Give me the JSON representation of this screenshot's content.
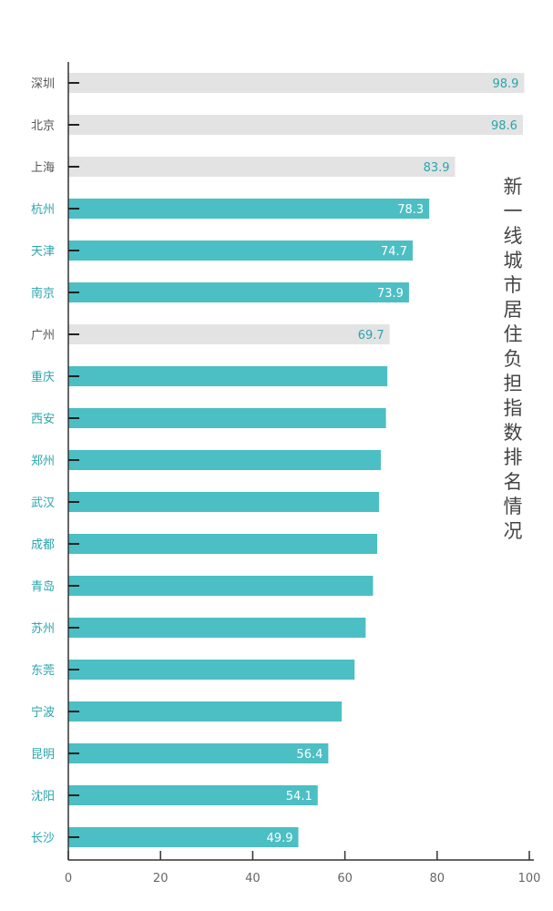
{
  "chart_data": {
    "type": "bar",
    "orientation": "horizontal",
    "title": "新一线城市居住负担指数排名情况",
    "categories": [
      "深圳",
      "北京",
      "上海",
      "杭州",
      "天津",
      "南京",
      "广州",
      "重庆",
      "西安",
      "郑州",
      "武汉",
      "成都",
      "青岛",
      "苏州",
      "东莞",
      "宁波",
      "昆明",
      "沈阳",
      "长沙"
    ],
    "values": [
      98.9,
      98.6,
      83.9,
      78.3,
      74.7,
      73.9,
      69.7,
      69.2,
      68.9,
      67.8,
      67.4,
      67.0,
      66.1,
      64.5,
      62.1,
      59.3,
      56.4,
      54.1,
      49.9
    ],
    "value_labels": [
      "98.9",
      "98.6",
      "83.9",
      "78.3",
      "74.7",
      "73.9",
      "69.7",
      "",
      "",
      "",
      "",
      "",
      "",
      "",
      "",
      "",
      "56.4",
      "54.1",
      "49.9"
    ],
    "category_group": [
      "first-tier",
      "first-tier",
      "first-tier",
      "new-first-tier",
      "new-first-tier",
      "new-first-tier",
      "first-tier",
      "new-first-tier",
      "new-first-tier",
      "new-first-tier",
      "new-first-tier",
      "new-first-tier",
      "new-first-tier",
      "new-first-tier",
      "new-first-tier",
      "new-first-tier",
      "new-first-tier",
      "new-first-tier",
      "new-first-tier"
    ],
    "xlim": [
      0,
      100
    ],
    "xticks": [
      0,
      20,
      40,
      60,
      80,
      100
    ],
    "grid": false,
    "colors": {
      "first-tier": "#e3e3e3",
      "new-first-tier": "#4bbfc4",
      "first_tier_label": "#555555",
      "new_first_tier_label": "#2aa5ad",
      "label_on_teal": "#ffffff",
      "label_on_gray": "#2aa5ad"
    }
  }
}
